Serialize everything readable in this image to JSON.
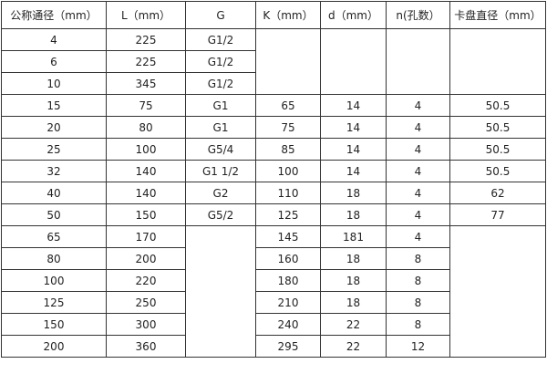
{
  "headers": [
    "公称通径（mm）",
    "L（mm）",
    "G",
    "K（mm）",
    "d（mm）",
    "n(孔数）",
    "卡盘直径（mm）"
  ],
  "rows": [
    [
      "4",
      "225",
      "G1/2",
      "",
      "",
      "",
      ""
    ],
    [
      "6",
      "225",
      "G1/2",
      null,
      null,
      null,
      null
    ],
    [
      "10",
      "345",
      "G1/2",
      null,
      null,
      null,
      null
    ],
    [
      "15",
      "75",
      "G1",
      "65",
      "14",
      "4",
      "50.5"
    ],
    [
      "20",
      "80",
      "G1",
      "75",
      "14",
      "4",
      "50.5"
    ],
    [
      "25",
      "100",
      "G5/4",
      "85",
      "14",
      "4",
      "50.5"
    ],
    [
      "32",
      "140",
      "G1  1/2",
      "100",
      "14",
      "4",
      "50.5"
    ],
    [
      "40",
      "140",
      "G2",
      "110",
      "18",
      "4",
      "62"
    ],
    [
      "50",
      "150",
      "G5/2",
      "125",
      "18",
      "4",
      "77"
    ],
    [
      "65",
      "170",
      "",
      "145",
      "181",
      "4",
      ""
    ],
    [
      "80",
      "200",
      null,
      "160",
      "18",
      "8",
      null
    ],
    [
      "100",
      "220",
      null,
      "180",
      "18",
      "8",
      null
    ],
    [
      "125",
      "250",
      null,
      "210",
      "18",
      "8",
      null
    ],
    [
      "150",
      "300",
      null,
      "240",
      "22",
      "8",
      null
    ],
    [
      "200",
      "360",
      null,
      "295",
      "22",
      "12",
      null
    ]
  ]
}
